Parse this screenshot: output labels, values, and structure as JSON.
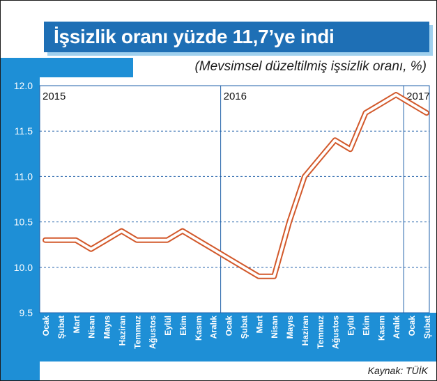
{
  "title": "İşsizlik oranı yüzde 11,7’ye indi",
  "subtitle": "(Mevsimsel düzeltilmiş işsizlik oranı, %)",
  "source": "Kaynak: TÜİK",
  "colors": {
    "background_blue": "#1e8fd6",
    "title_blue": "#1e6fb5",
    "title_shadow": "#9fd0ee",
    "line_fill": "#ffffff",
    "line_outline": "#d2582a",
    "grid": "#1e5fa8"
  },
  "chart_data": {
    "type": "line",
    "title": "İşsizlik oranı yüzde 11,7’ye indi",
    "subtitle": "(Mevsimsel düzeltilmiş işsizlik oranı, %)",
    "xlabel": "",
    "ylabel": "",
    "ylim": [
      9.5,
      12.0
    ],
    "yticks": [
      "12.0",
      "11.5",
      "11.0",
      "10.5",
      "10.0",
      "9.5"
    ],
    "year_labels": [
      {
        "label": "2015",
        "start_index": 0
      },
      {
        "label": "2016",
        "start_index": 12
      },
      {
        "label": "2017",
        "start_index": 24
      }
    ],
    "categories": [
      "Ocak",
      "Şubat",
      "Mart",
      "Nisan",
      "Mayıs",
      "Haziran",
      "Temmuz",
      "Ağustos",
      "Eylül",
      "Ekim",
      "Kasım",
      "Aralık",
      "Ocak",
      "Şubat",
      "Mart",
      "Nisan",
      "Mayıs",
      "Haziran",
      "Temmuz",
      "Ağustos",
      "Eylül",
      "Ekim",
      "Kasım",
      "Aralık",
      "Ocak",
      "Şubat"
    ],
    "values": [
      10.3,
      10.3,
      10.3,
      10.2,
      10.3,
      10.4,
      10.3,
      10.3,
      10.3,
      10.4,
      10.3,
      10.2,
      10.1,
      10.0,
      9.9,
      9.9,
      10.5,
      11.0,
      11.2,
      11.4,
      11.3,
      11.7,
      11.8,
      11.9,
      11.8,
      11.7
    ],
    "grid": true,
    "legend": "none"
  }
}
